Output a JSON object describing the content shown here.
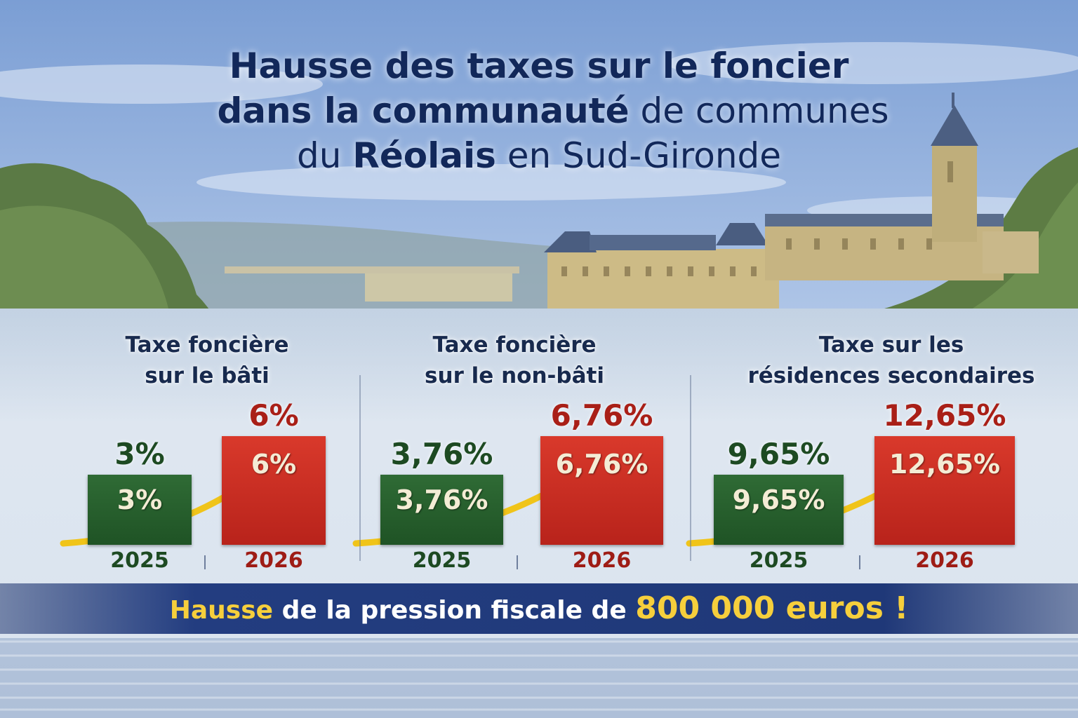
{
  "title": {
    "line1": "Hausse des taxes sur le foncier",
    "line2_bold": "dans la communauté",
    "line2_normal": " de communes",
    "line3_normal_a": "du ",
    "line3_bold": "Réolais",
    "line3_normal_b": " en Sud-Gironde"
  },
  "colors": {
    "green": "#1f5325",
    "red": "#c02a1f",
    "arrow": "#f0c419",
    "title": "#12285a"
  },
  "chart_data": [
    {
      "type": "bar",
      "title_line1": "Taxe foncière",
      "title_line2": "sur le bâti",
      "categories": [
        "2025",
        "2026"
      ],
      "values": [
        3,
        6
      ],
      "labels": [
        "3%",
        "6%"
      ]
    },
    {
      "type": "bar",
      "title_line1": "Taxe foncière",
      "title_line2": "sur le non-bâti",
      "categories": [
        "2025",
        "2026"
      ],
      "values": [
        3.76,
        6.76
      ],
      "labels": [
        "3,76%",
        "6,76%"
      ]
    },
    {
      "type": "bar",
      "title_line1": "Taxe sur les",
      "title_line2": "résidences secondaires",
      "categories": [
        "2025",
        "2026"
      ],
      "values": [
        9.65,
        12.65
      ],
      "labels": [
        "9,65%",
        "12,65%"
      ]
    }
  ],
  "banner": {
    "part1": "Hausse",
    "part2": " de la pression fiscale de ",
    "part3": "800 000 euros !"
  }
}
